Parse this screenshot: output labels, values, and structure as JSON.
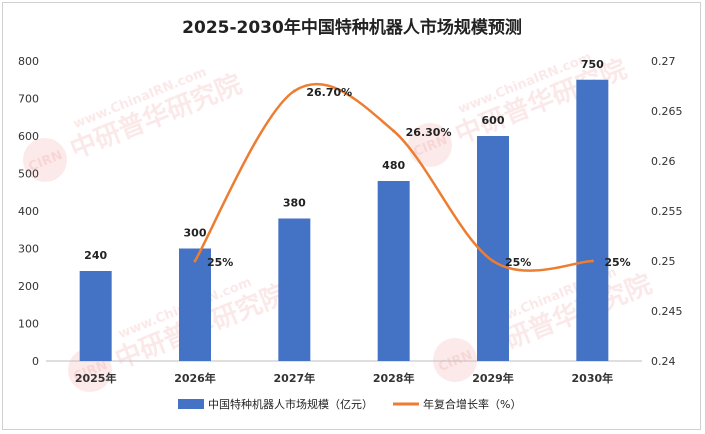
{
  "chart_data": {
    "type": "bar",
    "title": "2025-2030年中国特种机器人市场规模预测",
    "categories": [
      "2025年",
      "2026年",
      "2027年",
      "2028年",
      "2029年",
      "2030年"
    ],
    "series": [
      {
        "name": "中国特种机器人市场规模（亿元）",
        "type": "bar",
        "axis": "left",
        "color": "#4472c4",
        "values": [
          240,
          300,
          380,
          480,
          600,
          750
        ],
        "labels": [
          "240",
          "300",
          "380",
          "480",
          "600",
          "750"
        ]
      },
      {
        "name": "年复合增长率（%）",
        "type": "line",
        "axis": "right",
        "color": "#ed7d31",
        "values": [
          null,
          0.25,
          0.267,
          0.263,
          0.25,
          0.25
        ],
        "labels": [
          "",
          "25%",
          "26.70%",
          "26.30%",
          "25%",
          "25%"
        ]
      }
    ],
    "y_left": {
      "min": 0,
      "max": 800,
      "ticks": [
        "0",
        "100",
        "200",
        "300",
        "400",
        "500",
        "600",
        "700",
        "800"
      ]
    },
    "y_right": {
      "min": 0.24,
      "max": 0.27,
      "ticks": [
        "0.24",
        "0.245",
        "0.25",
        "0.255",
        "0.26",
        "0.265",
        "0.27"
      ]
    },
    "grid": false,
    "legend_position": "bottom"
  },
  "watermark": {
    "brand": "中研普华研究院",
    "site": "www.ChinaIRN.com",
    "logo": "CIRN"
  }
}
